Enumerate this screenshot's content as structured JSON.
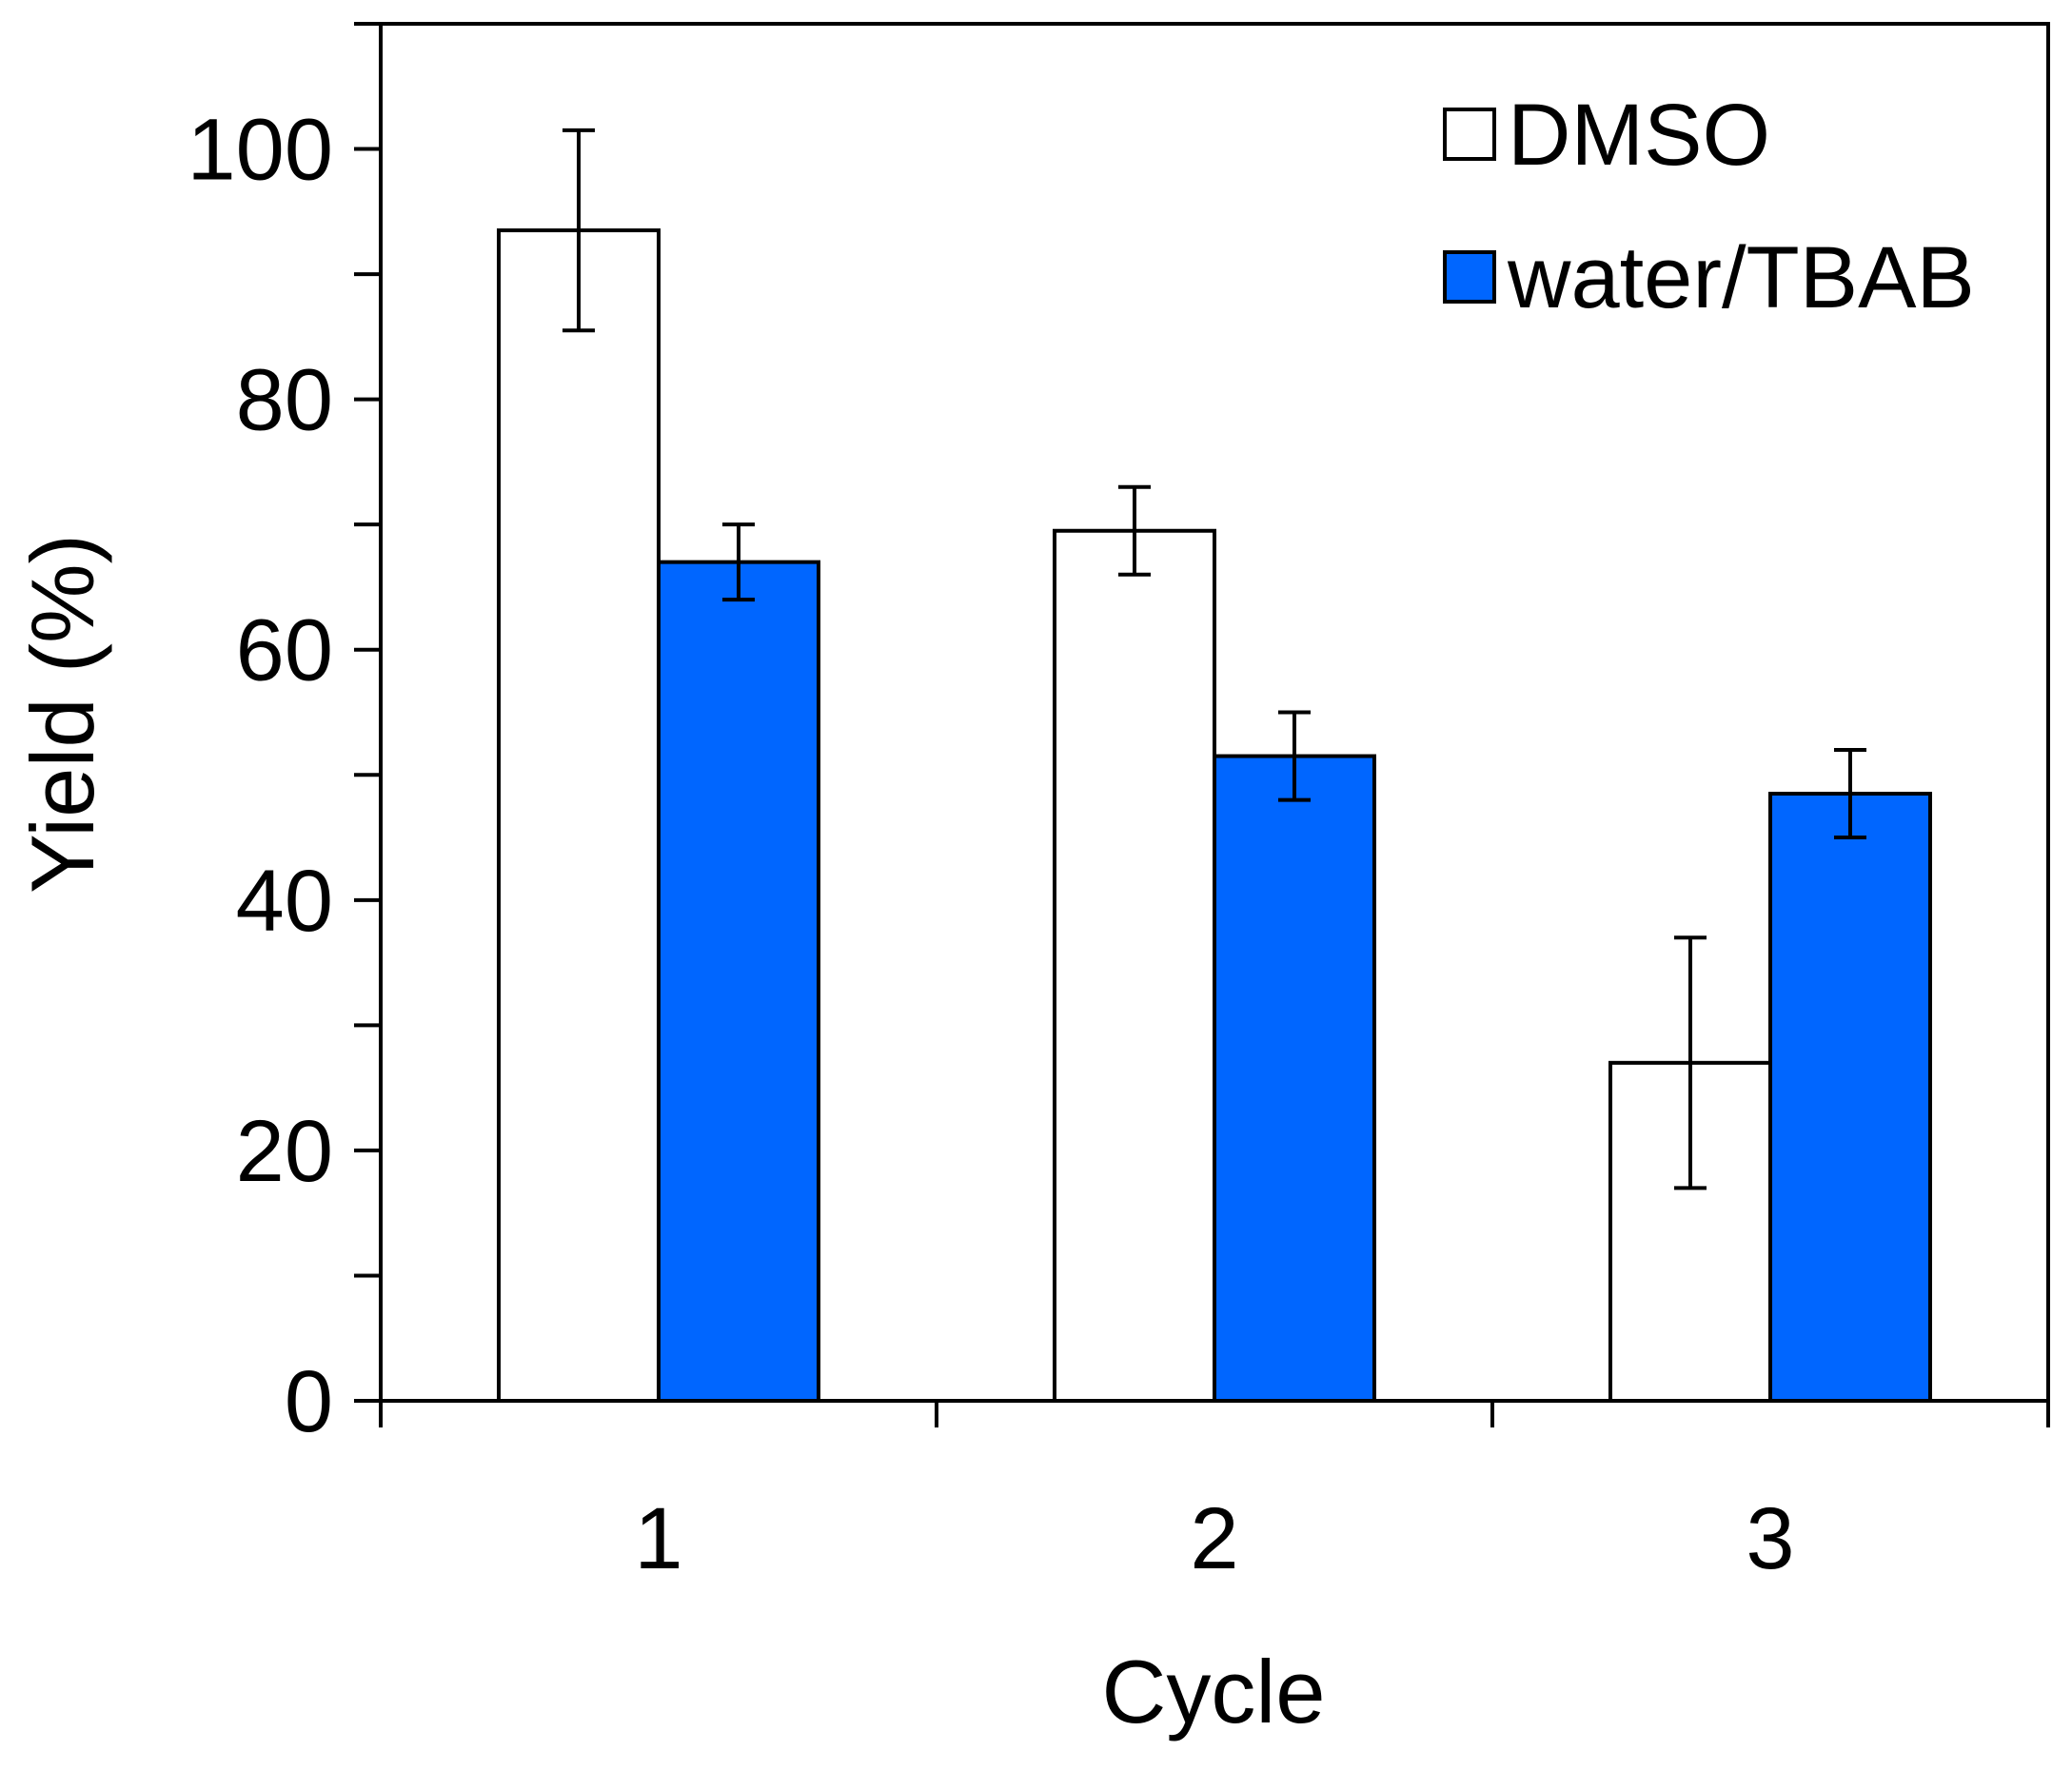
{
  "chart_data": {
    "type": "bar",
    "title": "",
    "xlabel": "Cycle",
    "ylabel": "Yield (%)",
    "ylim": [
      0,
      110
    ],
    "yticks": [
      0,
      20,
      40,
      60,
      80,
      100
    ],
    "y_minor_step": 10,
    "grid": false,
    "legend_position": "top-right",
    "categories": [
      "1",
      "2",
      "3"
    ],
    "series": [
      {
        "name": "DMSO",
        "color": "#ffffff",
        "values": [
          93.5,
          69.5,
          27
        ],
        "errors": [
          8,
          3.5,
          10
        ]
      },
      {
        "name": "water/TBAB",
        "color": "#0066ff",
        "values": [
          67,
          51.5,
          48.5
        ],
        "errors": [
          3,
          3.5,
          3.5
        ]
      }
    ]
  }
}
